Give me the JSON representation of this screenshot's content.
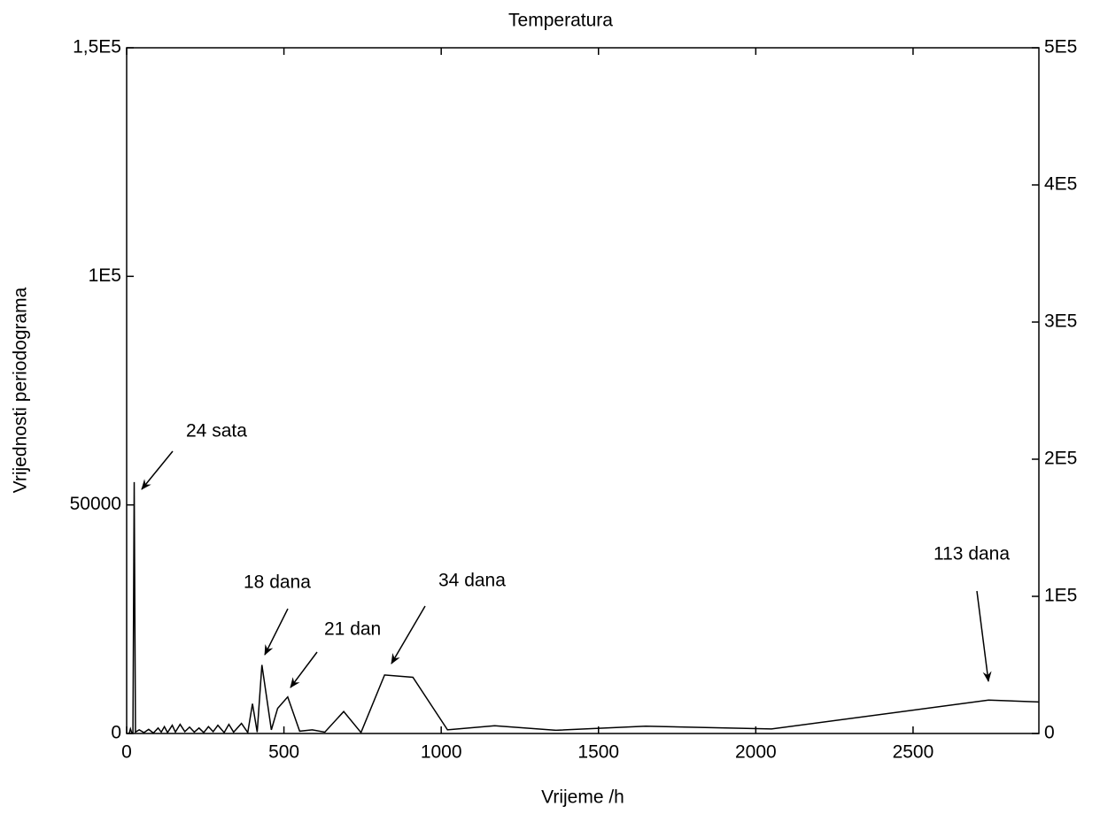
{
  "chart_data": {
    "type": "line",
    "title": "Temperatura",
    "x_label": "Vrijeme /h",
    "y_label": "Vrijednosti periodograma",
    "x": [
      8,
      12,
      16,
      20,
      24,
      28,
      40,
      55,
      70,
      85,
      100,
      110,
      120,
      130,
      145,
      155,
      170,
      185,
      200,
      215,
      230,
      245,
      260,
      275,
      290,
      310,
      325,
      340,
      365,
      385,
      400,
      415,
      430,
      460,
      480,
      512,
      550,
      590,
      630,
      690,
      745,
      820,
      910,
      1020,
      1170,
      1365,
      1650,
      2050,
      2740,
      2900
    ],
    "series": [
      {
        "color": "#000000",
        "values": [
          0,
          1000,
          200,
          300,
          55000,
          300,
          800,
          200,
          900,
          100,
          1200,
          300,
          1500,
          200,
          1800,
          300,
          2000,
          400,
          1400,
          300,
          1200,
          200,
          1500,
          400,
          1800,
          200,
          2000,
          300,
          2200,
          200,
          6500,
          300,
          15000,
          800,
          5500,
          8000,
          500,
          800,
          300,
          4800,
          200,
          12800,
          12300,
          800,
          1700,
          700,
          1600,
          1000,
          7300,
          6900
        ]
      }
    ],
    "xlim": [
      0,
      2900
    ],
    "xticks": [
      0,
      500,
      1000,
      1500,
      2000,
      2500
    ],
    "ylim": [
      0,
      150000
    ],
    "yticks": [
      0,
      50000,
      {
        "value": 100000,
        "label": "1E5"
      },
      {
        "value": 150000,
        "label": "1,5E5"
      }
    ],
    "y2lim": [
      0,
      500000
    ],
    "y2ticks": [
      0,
      {
        "value": 100000,
        "label": "1E5"
      },
      {
        "value": 200000,
        "label": "2E5"
      },
      {
        "value": 300000,
        "label": "3E5"
      },
      {
        "value": 400000,
        "label": "4E5"
      },
      {
        "value": 500000,
        "label": "5E5"
      }
    ],
    "grid": false,
    "annotations": [
      "24 sata",
      "18 dana",
      "21 dan",
      "34 dana",
      "113 dana"
    ]
  }
}
